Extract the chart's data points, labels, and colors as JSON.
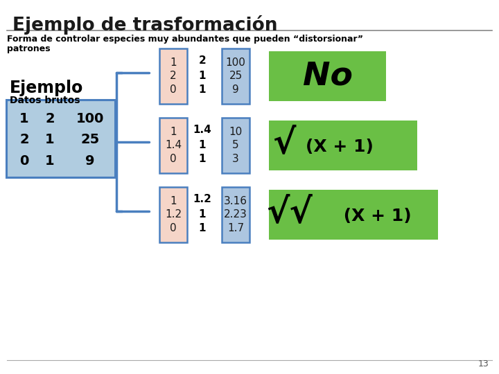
{
  "title": "Ejemplo de trasformación",
  "subtitle_line1": "Forma de controlar especies muy abundantes que pueden “distorsionar”",
  "subtitle_line2": "patrones",
  "page_number": "13",
  "raw_data_label": "Ejemplo",
  "raw_data_sublabel": "Datos brutos",
  "row1_pink": [
    "1",
    "2",
    "0"
  ],
  "row1_black": [
    "2",
    "1",
    "1"
  ],
  "row1_blue": [
    "100",
    "25",
    "9"
  ],
  "row2_pink": [
    "1",
    "1.4",
    "0"
  ],
  "row2_black": [
    "1.4",
    "1",
    "1"
  ],
  "row2_blue": [
    "10",
    "5",
    "3"
  ],
  "row3_pink": [
    "1",
    "1.2",
    "0"
  ],
  "row3_black": [
    "1.2",
    "1",
    "1"
  ],
  "row3_blue": [
    "3.16",
    "2.23",
    "1.7"
  ],
  "green_bg": "#6abf45",
  "pink_bg": "#f5d5c8",
  "blue_col_bg": "#adc6e0",
  "raw_blue_bg": "#b0cce0",
  "white_bg": "#ffffff",
  "border_blue": "#4a7fbf",
  "label1": "No",
  "label2_sqrt": "√",
  "label2_rest": "(X + 1)",
  "label3_sqrt": "√√",
  "label3_rest": " (X + 1)"
}
